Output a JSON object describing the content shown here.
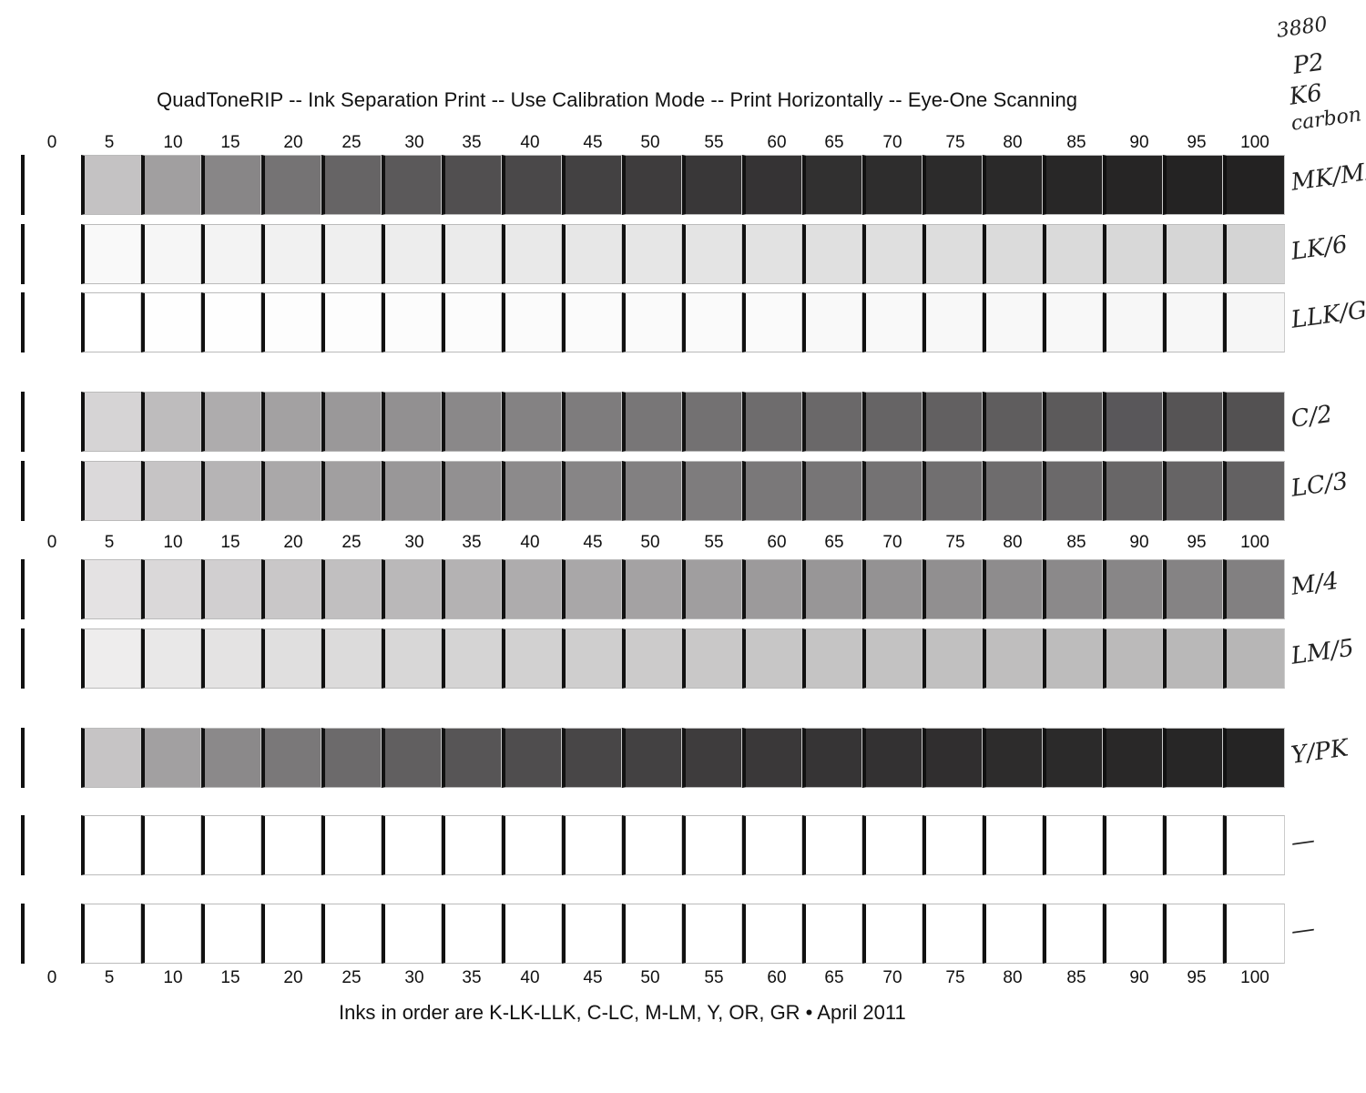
{
  "title": "QuadToneRIP -- Ink Separation Print -- Use Calibration Mode -- Print Horizontally -- Eye-One Scanning",
  "footer": "Inks in order are K-LK-LLK,  C-LC,  M-LM, Y, OR, GR • April 2011",
  "scale_labels": [
    "0",
    "5",
    "10",
    "15",
    "20",
    "25",
    "30",
    "35",
    "40",
    "45",
    "50",
    "55",
    "60",
    "65",
    "70",
    "75",
    "80",
    "85",
    "90",
    "95",
    "100"
  ],
  "handwritten": {
    "header_lines": [
      "3880",
      "P2",
      "K6",
      "carbon"
    ],
    "row_labels": [
      "MK/MK",
      "LK/6",
      "LLK/GC",
      "C/2",
      "LC/3",
      "M/4",
      "LM/5",
      "Y/PK",
      "—",
      "—"
    ]
  },
  "strips": [
    {
      "label": "MK/MK",
      "grays": [
        "#c4c2c3",
        "#a19fa0",
        "#888687",
        "#757374",
        "#666465",
        "#5b595a",
        "#514f50",
        "#4a4849",
        "#434142",
        "#3e3c3d",
        "#393738",
        "#353334",
        "#313030",
        "#2e2d2d",
        "#2c2b2b",
        "#2a2929",
        "#282727",
        "#262525",
        "#242323",
        "#232222"
      ]
    },
    {
      "label": "LK/6",
      "grays": [
        "#f9f9f9",
        "#f6f6f6",
        "#f3f3f3",
        "#f1f1f1",
        "#efefef",
        "#ededed",
        "#ebebeb",
        "#e9e9e9",
        "#e7e7e7",
        "#e6e6e6",
        "#e4e4e4",
        "#e2e2e2",
        "#e0e0e0",
        "#dfdfdf",
        "#dddddd",
        "#dbdbdb",
        "#dadada",
        "#d8d8d8",
        "#d6d6d6",
        "#d4d4d4"
      ]
    },
    {
      "label": "LLK/GC",
      "grays": [
        "#ffffff",
        "#fefefe",
        "#fefefe",
        "#fdfdfd",
        "#fdfdfd",
        "#fcfcfc",
        "#fcfcfc",
        "#fbfbfb",
        "#fbfbfb",
        "#fafafa",
        "#fafafa",
        "#fafafa",
        "#f9f9f9",
        "#f9f9f9",
        "#f8f8f8",
        "#f8f8f8",
        "#f8f8f8",
        "#f7f7f7",
        "#f7f7f7",
        "#f6f6f6"
      ]
    },
    {
      "label": "C/2",
      "grays": [
        "#d6d4d5",
        "#bebcbd",
        "#aeacad",
        "#a3a1a2",
        "#9a9899",
        "#929091",
        "#8a8889",
        "#848283",
        "#7e7c7d",
        "#787677",
        "#737172",
        "#6e6c6d",
        "#6a6869",
        "#666465",
        "#626061",
        "#5f5d5e",
        "#5c5a5b",
        "#59575a",
        "#565455",
        "#535152"
      ]
    },
    {
      "label": "LC/3",
      "grays": [
        "#dbd9da",
        "#c6c4c5",
        "#b6b4b5",
        "#aaa8a9",
        "#a19fa0",
        "#999798",
        "#929091",
        "#8c8a8b",
        "#878586",
        "#828081",
        "#7e7c7d",
        "#7a7879",
        "#777576",
        "#747273",
        "#716f70",
        "#6e6c6d",
        "#6b696a",
        "#686667",
        "#666465",
        "#636162"
      ]
    },
    {
      "label": "M/4",
      "grays": [
        "#e4e2e3",
        "#dad8d9",
        "#d1cfd0",
        "#c9c7c8",
        "#c1bfc0",
        "#bab8b9",
        "#b4b2b3",
        "#aeacad",
        "#a9a7a8",
        "#a4a2a3",
        "#a09e9f",
        "#9c9a9b",
        "#989697",
        "#949293",
        "#918f90",
        "#8e8c8d",
        "#8b898a",
        "#888687",
        "#858384",
        "#828081"
      ]
    },
    {
      "label": "LM/5",
      "grays": [
        "#eeeded",
        "#e9e8e8",
        "#e4e3e3",
        "#e0dfdf",
        "#dcdbdb",
        "#d8d7d7",
        "#d5d4d4",
        "#d2d1d1",
        "#cfcece",
        "#cccbcb",
        "#c9c8c8",
        "#c7c6c6",
        "#c5c4c4",
        "#c3c2c2",
        "#c1c0c0",
        "#bfbebe",
        "#bdbcbc",
        "#bbbaba",
        "#b9b8b8",
        "#b7b6b6"
      ]
    },
    {
      "label": "Y/PK",
      "grays": [
        "#c6c4c5",
        "#a2a0a1",
        "#8b898a",
        "#7a7879",
        "#6c6a6b",
        "#615f60",
        "#575556",
        "#4f4d4e",
        "#484647",
        "#434142",
        "#3e3c3d",
        "#3a3839",
        "#363435",
        "#333132",
        "#302e2f",
        "#2d2c2c",
        "#2b2a2a",
        "#292828",
        "#272626",
        "#252424"
      ]
    },
    {
      "label": "—",
      "grays": [
        "#ffffff",
        "#ffffff",
        "#ffffff",
        "#ffffff",
        "#ffffff",
        "#ffffff",
        "#ffffff",
        "#ffffff",
        "#ffffff",
        "#ffffff",
        "#ffffff",
        "#ffffff",
        "#ffffff",
        "#ffffff",
        "#ffffff",
        "#ffffff",
        "#ffffff",
        "#ffffff",
        "#ffffff",
        "#ffffff"
      ]
    },
    {
      "label": "—",
      "grays": [
        "#ffffff",
        "#ffffff",
        "#ffffff",
        "#ffffff",
        "#ffffff",
        "#ffffff",
        "#ffffff",
        "#ffffff",
        "#ffffff",
        "#ffffff",
        "#ffffff",
        "#ffffff",
        "#ffffff",
        "#ffffff",
        "#ffffff",
        "#ffffff",
        "#ffffff",
        "#ffffff",
        "#ffffff",
        "#ffffff"
      ]
    }
  ]
}
